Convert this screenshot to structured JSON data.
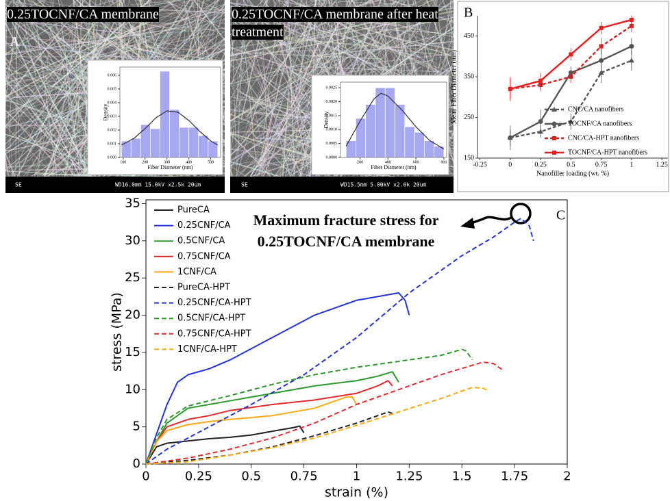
{
  "images": [
    {
      "caption": "0.25TOCNF/CA membrane",
      "label": "A",
      "info": [
        "SE",
        "WD16.0mm 15.0kV x2.5k 20um"
      ]
    },
    {
      "caption": "0.25TOCNF/CA membrane after heat treatment",
      "info": [
        "SE",
        "WD15.5mm 5.00kV x2.0k 20um"
      ]
    }
  ],
  "chart_data": [
    {
      "type": "histogram",
      "xlabel": "Fiber Diameter (nm)",
      "ylabel": "Density",
      "color": "#a6a8f2",
      "bins": [
        92,
        136,
        180,
        224,
        268,
        312,
        356,
        400,
        444,
        488,
        532
      ],
      "values": [
        0.0012,
        0.0014,
        0.0024,
        0.0021,
        0.0063,
        0.0035,
        0.0022,
        0.0022,
        0.0016,
        0.0012
      ],
      "fit": {
        "color": "#333333",
        "x": [
          92,
          150,
          200,
          250,
          300,
          350,
          400,
          450,
          500,
          532
        ],
        "values": [
          0.0009,
          0.0014,
          0.0021,
          0.0029,
          0.0034,
          0.0033,
          0.0027,
          0.0019,
          0.0012,
          0.0009
        ]
      },
      "xlim": [
        85,
        545
      ],
      "ylim": [
        0,
        0.0066
      ],
      "xticks": [
        100,
        200,
        300,
        400,
        500
      ],
      "yticks": [
        {
          "value": 0,
          "label": "0.000"
        },
        {
          "value": 0.001,
          "label": "0.001"
        },
        {
          "value": 0.002,
          "label": "0.002"
        },
        {
          "value": 0.003,
          "label": "0.003"
        },
        {
          "value": 0.004,
          "label": "0.004"
        },
        {
          "value": 0.005,
          "label": "0.005"
        },
        {
          "value": 0.006,
          "label": "0.006"
        }
      ]
    },
    {
      "type": "histogram",
      "xlabel": "Fiber Diameter (nm)",
      "ylabel": "Density",
      "color": "#a6a8f2",
      "bins": [
        100,
        170,
        240,
        310,
        380,
        450,
        520,
        590,
        660,
        730,
        800
      ],
      "values": [
        0.0006,
        0.0014,
        0.0019,
        0.0025,
        0.0025,
        0.0019,
        0.0011,
        0.0009,
        0.0006,
        0.0004
      ],
      "fit": {
        "color": "#333333",
        "x": [
          100,
          200,
          300,
          350,
          400,
          500,
          600,
          700,
          800
        ],
        "values": [
          0.0004,
          0.0013,
          0.0021,
          0.0023,
          0.0022,
          0.0017,
          0.0011,
          0.0006,
          0.0003
        ]
      },
      "xlim": [
        60,
        820
      ],
      "ylim": [
        0,
        0.0027
      ],
      "xticks": [
        200,
        400,
        600,
        800
      ],
      "yticks": [
        {
          "value": 0,
          "label": "0.0000"
        },
        {
          "value": 0.0005,
          "label": "0.0005"
        },
        {
          "value": 0.001,
          "label": "0.0010"
        },
        {
          "value": 0.0015,
          "label": "0.0015"
        },
        {
          "value": 0.002,
          "label": "0.0020"
        },
        {
          "value": 0.0025,
          "label": "0.0025"
        }
      ]
    },
    {
      "type": "line",
      "panel_label": "B",
      "xlabel": "Nanofiller loading (wt. %)",
      "ylabel": "Mean Fiber Diameter (nm)",
      "x": [
        0,
        0.25,
        0.5,
        0.75,
        1
      ],
      "series": [
        {
          "name": "CNC/CA nanofibers",
          "color": "#555555",
          "dash": true,
          "marker": "triangle",
          "values": [
            200,
            215,
            240,
            360,
            390
          ],
          "errors": [
            30,
            15,
            20,
            25,
            25
          ]
        },
        {
          "name": "TOCNF/CA nanofibers",
          "color": "#555555",
          "dash": false,
          "marker": "circle",
          "values": [
            200,
            240,
            360,
            390,
            425
          ],
          "errors": [
            20,
            30,
            15,
            30,
            20
          ]
        },
        {
          "name": "CNC/CA-HPT nanofibers",
          "color": "#d42020",
          "dash": true,
          "marker": "square",
          "values": [
            320,
            330,
            350,
            425,
            475
          ],
          "errors": [
            30,
            15,
            15,
            20,
            15
          ]
        },
        {
          "name": "TOCNF/CA-HPT nanofibers",
          "color": "#ee1c1c",
          "dash": false,
          "marker": "square",
          "values": [
            320,
            340,
            405,
            470,
            490
          ],
          "errors": [
            25,
            20,
            15,
            15,
            10
          ]
        }
      ],
      "xlim": [
        -0.27,
        1.3
      ],
      "ylim": [
        150,
        500
      ],
      "xticks": [
        -0.25,
        0,
        0.25,
        0.5,
        0.75,
        1,
        1.25
      ],
      "yticks": [
        150,
        250,
        350,
        450
      ],
      "legend": "right"
    },
    {
      "type": "line",
      "panel_label": "C",
      "annotation": [
        "Maximum fracture stress for",
        "0.25TOCNF/CA membrane"
      ],
      "xlabel": "strain (%)",
      "ylabel": "stress (MPa)",
      "frame": true,
      "legend": "upper left",
      "xlim": [
        0,
        2
      ],
      "ylim": [
        0,
        35.5
      ],
      "xticks": [
        0,
        0.25,
        0.5,
        0.75,
        1,
        1.25,
        1.5,
        1.75,
        2
      ],
      "yticks": [
        0,
        5,
        10,
        15,
        20,
        25,
        30,
        35
      ],
      "series": [
        {
          "name": "PureCA",
          "color": "#222222",
          "dash": false,
          "x": [
            0,
            0.05,
            0.1,
            0.2,
            0.3,
            0.4,
            0.5,
            0.6,
            0.7,
            0.73,
            0.75
          ],
          "values": [
            0,
            2.3,
            2.8,
            3.1,
            3.4,
            3.6,
            3.9,
            4.4,
            4.9,
            5.1,
            4.2
          ]
        },
        {
          "name": "0.25CNF/CA",
          "color": "#2233dd",
          "dash": false,
          "x": [
            0,
            0.05,
            0.1,
            0.15,
            0.2,
            0.3,
            0.4,
            0.5,
            0.6,
            0.7,
            0.8,
            0.9,
            1.0,
            1.1,
            1.2,
            1.23,
            1.25
          ],
          "values": [
            0,
            4,
            8,
            11,
            12,
            12.8,
            14,
            15.5,
            17,
            18.5,
            20,
            21,
            22,
            22.5,
            23,
            22,
            20
          ]
        },
        {
          "name": "0.5CNF/CA",
          "color": "#2a9a2a",
          "dash": false,
          "x": [
            0,
            0.05,
            0.1,
            0.2,
            0.3,
            0.4,
            0.6,
            0.8,
            1.0,
            1.1,
            1.17,
            1.2
          ],
          "values": [
            0,
            3,
            5.5,
            7.5,
            8,
            8.5,
            9.5,
            10.5,
            11.2,
            11.8,
            12.4,
            11
          ]
        },
        {
          "name": "0.75CNF/CA",
          "color": "#e8282b",
          "dash": false,
          "x": [
            0,
            0.05,
            0.1,
            0.2,
            0.3,
            0.4,
            0.6,
            0.8,
            1.0,
            1.1,
            1.15,
            1.17
          ],
          "values": [
            0,
            3,
            5,
            6,
            6.5,
            7.2,
            8,
            8.6,
            9.5,
            10.5,
            11.2,
            10.5
          ]
        },
        {
          "name": "1CNF/CA",
          "color": "#ffa812",
          "dash": false,
          "x": [
            0,
            0.05,
            0.1,
            0.2,
            0.3,
            0.4,
            0.6,
            0.8,
            0.95,
            0.98,
            1.0
          ],
          "values": [
            0,
            3,
            4.5,
            5.3,
            5.7,
            6,
            6.5,
            7.5,
            9,
            9,
            8
          ]
        },
        {
          "name": "PureCA-HPT",
          "color": "#222222",
          "dash": true,
          "x": [
            0,
            0.2,
            0.4,
            0.6,
            0.8,
            1.0,
            1.1,
            1.15,
            1.17
          ],
          "values": [
            0,
            0.5,
            1.2,
            2.3,
            3.8,
            5.5,
            6.5,
            7,
            6.8
          ]
        },
        {
          "name": "0.25CNF/CA-HPT",
          "color": "#2233dd",
          "dash": true,
          "x": [
            0,
            0.1,
            0.3,
            0.5,
            0.75,
            1.0,
            1.25,
            1.5,
            1.65,
            1.75,
            1.78,
            1.82,
            1.84
          ],
          "values": [
            0,
            2,
            5,
            8,
            12,
            17,
            23,
            28,
            30.5,
            32.5,
            33,
            32,
            30
          ]
        },
        {
          "name": "0.5CNF/CA-HPT",
          "color": "#2a9a2a",
          "dash": true,
          "x": [
            0,
            0.05,
            0.1,
            0.2,
            0.3,
            0.4,
            0.6,
            0.8,
            1.0,
            1.2,
            1.4,
            1.5,
            1.52,
            1.55
          ],
          "values": [
            0,
            3.5,
            6,
            7.8,
            8.5,
            9.2,
            10.7,
            12,
            13,
            13.8,
            14.6,
            15.4,
            15.2,
            14
          ]
        },
        {
          "name": "0.75CNF/CA-HPT",
          "color": "#e8282b",
          "dash": true,
          "x": [
            0,
            0.2,
            0.4,
            0.6,
            0.8,
            1.0,
            1.2,
            1.4,
            1.6,
            1.65,
            1.7
          ],
          "values": [
            0,
            0.8,
            2,
            3.5,
            5.5,
            8,
            10,
            12,
            13.7,
            13.5,
            12.5
          ]
        },
        {
          "name": "1CNF/CA-HPT",
          "color": "#ffa812",
          "dash": true,
          "x": [
            0,
            0.2,
            0.4,
            0.6,
            0.8,
            1.0,
            1.2,
            1.4,
            1.55,
            1.6,
            1.63
          ],
          "values": [
            0,
            0.3,
            1.2,
            2.2,
            3.5,
            5.2,
            7,
            8.8,
            10.3,
            10.2,
            9.8
          ]
        }
      ]
    }
  ]
}
